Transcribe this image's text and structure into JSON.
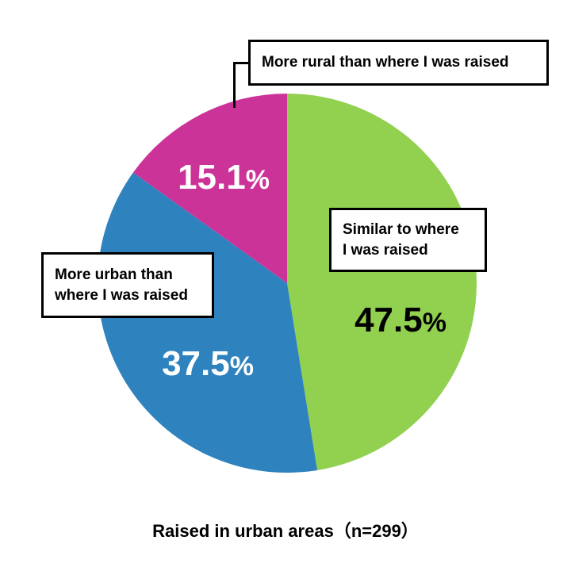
{
  "chart_data": {
    "type": "pie",
    "start": "12 o'clock, clockwise",
    "slices": [
      {
        "label": "Similar to where I was raised",
        "label_lines": [
          "Similar to where",
          "I was raised"
        ],
        "value": 47.5,
        "display": "47.5",
        "color": "#92d050",
        "text_color": "#000000"
      },
      {
        "label": "More urban than where I was raised",
        "label_lines": [
          "More urban than",
          "where I was raised"
        ],
        "value": 37.5,
        "display": "37.5",
        "color": "#2e83bf",
        "text_color": "#ffffff"
      },
      {
        "label": "More rural than where I was raised",
        "label_lines": [
          "More rural than where I was raised"
        ],
        "value": 15.1,
        "display": "15.1",
        "color": "#cc3399",
        "text_color": "#ffffff"
      }
    ],
    "percent_sign": "%",
    "caption": "Raised in urban areas（n=299）"
  }
}
